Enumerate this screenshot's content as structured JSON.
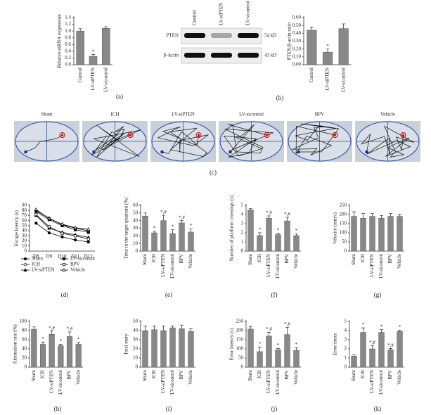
{
  "chart_data": [
    {
      "type": "bar",
      "label": "(a)",
      "ylabel": "Relative mRNA expression",
      "categories": [
        "Control",
        "LV-siPTEN",
        "LV-sicontrol"
      ],
      "values": [
        1.0,
        0.25,
        1.08
      ],
      "errors": [
        0.07,
        0.05,
        0.05
      ],
      "annotations": [
        null,
        "*",
        null
      ],
      "color": "#888888",
      "ylim": [
        0,
        1.4
      ],
      "yticks": [
        {
          "value": 0,
          "label": "0.0"
        },
        {
          "value": 0.2,
          "label": "0.2"
        },
        {
          "value": 0.4,
          "label": "0.4"
        },
        {
          "value": 0.6,
          "label": "0.6"
        },
        {
          "value": 0.8,
          "label": "0.8"
        },
        {
          "value": 1.0,
          "label": "1.0"
        },
        {
          "value": 1.2,
          "label": "1.2"
        },
        {
          "value": 1.4,
          "label": "1.4"
        }
      ]
    },
    {
      "type": "bar",
      "ylabel": "PTEN/β-actin ratio",
      "categories": [
        "Control",
        "LV-siPTEN",
        "LV-sicontrol"
      ],
      "values": [
        0.44,
        0.16,
        0.46
      ],
      "errors": [
        0.04,
        0.04,
        0.06
      ],
      "annotations": [
        null,
        "*",
        null
      ],
      "color": "#888888",
      "ylim": [
        0,
        0.6
      ],
      "yticks": [
        {
          "value": 0,
          "label": "0.00"
        },
        {
          "value": 0.1,
          "label": "0.10"
        },
        {
          "value": 0.2,
          "label": "0.20"
        },
        {
          "value": 0.3,
          "label": "0.30"
        },
        {
          "value": 0.4,
          "label": "0.40"
        },
        {
          "value": 0.5,
          "label": "0.50"
        },
        {
          "value": 0.6,
          "label": "0.60"
        }
      ]
    },
    {
      "type": "line",
      "label": "(d)",
      "ylabel": "Escape latency (s)",
      "categories": [
        "D8",
        "D9",
        "D10",
        "D11",
        "D12"
      ],
      "ylim": [
        0,
        90
      ],
      "yticks": [
        0,
        10,
        20,
        30,
        40,
        50,
        60,
        70,
        80,
        90
      ],
      "series": [
        {
          "name": "Sham",
          "color": "#000000",
          "marker": "filled-circle",
          "values": [
            55,
            36,
            28,
            22,
            18
          ]
        },
        {
          "name": "ICH",
          "color": "#000000",
          "marker": "open-circle",
          "values": [
            80,
            65,
            52,
            45,
            40
          ]
        },
        {
          "name": "LV-siPTEN",
          "color": "#000000",
          "marker": "filled-triangle",
          "values": [
            70,
            45,
            37,
            32,
            27
          ]
        },
        {
          "name": "LV-sicontrol",
          "color": "#000000",
          "marker": "filled-square",
          "values": [
            78,
            62,
            50,
            42,
            37
          ]
        },
        {
          "name": "BPV",
          "color": "#000000",
          "marker": "open-square",
          "values": [
            72,
            48,
            35,
            30,
            24
          ]
        },
        {
          "name": "Vehicle",
          "color": "#000000",
          "marker": "open-triangle",
          "values": [
            82,
            64,
            53,
            46,
            43
          ]
        }
      ]
    },
    {
      "type": "bar",
      "label": "(e)",
      "ylabel": "Time in the target quadrant (%)",
      "categories": [
        "Sham",
        "ICH",
        "LV-siPTEN",
        "LV-sicontrol",
        "BPV",
        "Vehicle"
      ],
      "values": [
        46,
        24,
        40,
        23,
        37,
        25
      ],
      "errors": [
        4,
        2,
        7,
        5,
        3,
        4
      ],
      "annotations": [
        null,
        "*",
        "*,#",
        "*",
        "*,#",
        "*"
      ],
      "color": "#888888",
      "ylim": [
        0,
        60
      ],
      "yticks": [
        0,
        10,
        20,
        30,
        40,
        50,
        60
      ]
    },
    {
      "type": "bar",
      "label": "(f)",
      "ylabel": "Number of platform crossings (s)",
      "categories": [
        "Sham",
        "ICH",
        "LV-siPTEN",
        "LV-sicontrol",
        "BPV",
        "Vehicle"
      ],
      "values": [
        4.5,
        1.7,
        3.6,
        1.8,
        3.3,
        1.7
      ],
      "errors": [
        0.15,
        0.3,
        0.25,
        0.15,
        0.4,
        0.2
      ],
      "annotations": [
        null,
        "*",
        "*,#",
        "*",
        "*,#",
        "*"
      ],
      "color": "#888888",
      "ylim": [
        0,
        5
      ],
      "yticks": [
        0,
        1,
        2,
        3,
        4,
        5
      ]
    },
    {
      "type": "bar",
      "label": "(g)",
      "ylabel": "Velocity (mm/s)",
      "categories": [
        "Sham",
        "ICH",
        "LV-siPTEN",
        "LV-sicontrol",
        "BPV",
        "Vehicle"
      ],
      "values": [
        190,
        180,
        190,
        180,
        190,
        190
      ],
      "errors": [
        25,
        25,
        15,
        15,
        15,
        10
      ],
      "annotations": [
        null,
        null,
        null,
        null,
        null,
        null
      ],
      "color": "#888888",
      "ylim": [
        0,
        250
      ],
      "yticks": [
        0,
        50,
        100,
        150,
        200,
        250
      ]
    },
    {
      "type": "bar",
      "label": "(h)",
      "ylabel": "Alternation rate (%)",
      "categories": [
        "Sham",
        "ICH",
        "LV-siPTEN",
        "LV-sicontrol",
        "BPV",
        "Vehicle"
      ],
      "values": [
        83,
        50,
        72,
        47,
        67,
        50
      ],
      "errors": [
        5,
        5,
        7,
        3,
        10,
        4
      ],
      "annotations": [
        null,
        "*",
        "*,#",
        "*",
        "*,#",
        "*"
      ],
      "color": "#888888",
      "ylim": [
        0,
        100
      ],
      "yticks": [
        0,
        20,
        40,
        60,
        80,
        100
      ]
    },
    {
      "type": "bar",
      "label": "(i)",
      "ylabel": "Total entry",
      "categories": [
        "Sham",
        "ICH",
        "LV-siPTEN",
        "LV-sicontrol",
        "BPV",
        "Vehicle"
      ],
      "values": [
        40,
        41,
        40,
        43,
        42,
        39
      ],
      "errors": [
        5,
        4,
        5,
        2,
        4,
        3
      ],
      "annotations": [
        null,
        null,
        null,
        null,
        null,
        null
      ],
      "color": "#888888",
      "ylim": [
        0,
        50
      ],
      "yticks": [
        0,
        10,
        20,
        30,
        40,
        50
      ]
    },
    {
      "type": "bar",
      "label": "(j)",
      "ylabel": "Error latency (s)",
      "categories": [
        "Sham",
        "ICH",
        "LV-siPTEN",
        "LV-sicontrol",
        "BPV",
        "Vehicle"
      ],
      "values": [
        208,
        85,
        170,
        95,
        178,
        92
      ],
      "errors": [
        15,
        25,
        20,
        8,
        40,
        15
      ],
      "annotations": [
        null,
        "*",
        "*,#",
        "*",
        "*,#",
        "*"
      ],
      "color": "#888888",
      "ylim": [
        0,
        250
      ],
      "yticks": [
        0,
        50,
        100,
        150,
        200,
        250
      ]
    },
    {
      "type": "bar",
      "label": "(k)",
      "ylabel": "Error times",
      "categories": [
        "Sham",
        "ICH",
        "LV-siPTEN",
        "LV-sicontrol",
        "BPV",
        "Vehicle"
      ],
      "values": [
        1.2,
        3.8,
        2.0,
        3.8,
        1.9,
        3.9
      ],
      "errors": [
        0.15,
        0.5,
        0.35,
        0.3,
        0.15,
        0.15
      ],
      "annotations": [
        null,
        "*",
        "*,#",
        "*",
        "*,#",
        "*"
      ],
      "color": "#888888",
      "ylim": [
        0,
        5
      ],
      "yticks": [
        0,
        1,
        2,
        3,
        4,
        5
      ]
    }
  ],
  "blot": {
    "label": "(b)",
    "lanes": [
      "Control",
      "LV-siPTEN",
      "LV-sicontrol"
    ],
    "bands": [
      {
        "name": "PTEN",
        "size": "54 kD"
      },
      {
        "name": "β-Actin",
        "size": "43 kD"
      }
    ]
  },
  "maze": {
    "label": "(c)",
    "groups": [
      "Sham",
      "ICH",
      "LV-siPTEN",
      "LV-sicontrol",
      "BPV",
      "Vehicle"
    ]
  }
}
